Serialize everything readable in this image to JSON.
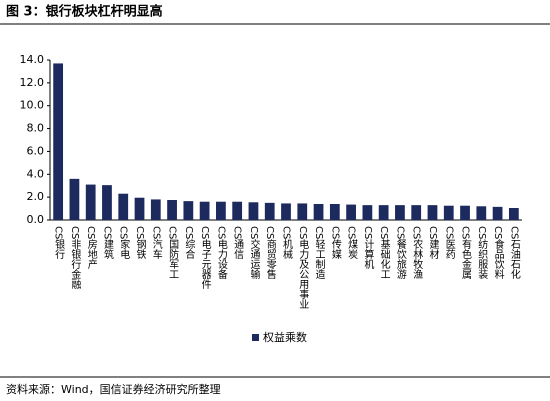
{
  "chart_data": {
    "type": "bar",
    "title": "图 3：银行板块杠杆明显高",
    "source": "资料来源：Wind，国信证券经济研究所整理",
    "categories": [
      "CS银行",
      "CS非银行金融",
      "CS房地产",
      "CS建筑",
      "CS家电",
      "CS钢铁",
      "CS汽车",
      "CS国防军工",
      "CS综合",
      "CS电子元器件",
      "CS电力设备",
      "CS通信",
      "CS交通运输",
      "CS商贸零售",
      "CS机械",
      "CS电力及公用事业",
      "CS轻工制造",
      "CS传媒",
      "CS煤炭",
      "CS计算机",
      "CS基础化工",
      "CS餐饮旅游",
      "CS农林牧渔",
      "CS建材",
      "CS医药",
      "CS有色金属",
      "CS纺织服装",
      "CS食品饮料",
      "CS石油石化"
    ],
    "series": [
      {
        "name": "权益乘数",
        "color": "#1c2a5e",
        "values": [
          13.7,
          3.6,
          3.1,
          3.05,
          2.3,
          1.95,
          1.8,
          1.75,
          1.65,
          1.6,
          1.6,
          1.6,
          1.55,
          1.5,
          1.45,
          1.45,
          1.4,
          1.4,
          1.35,
          1.3,
          1.3,
          1.3,
          1.3,
          1.3,
          1.25,
          1.25,
          1.2,
          1.15,
          1.05
        ]
      }
    ],
    "ylim": [
      0,
      14
    ],
    "yticks": [
      {
        "value": 0,
        "label": "0.0"
      },
      {
        "value": 2,
        "label": "2.0"
      },
      {
        "value": 4,
        "label": "4.0"
      },
      {
        "value": 6,
        "label": "6.0"
      },
      {
        "value": 8,
        "label": "8.0"
      },
      {
        "value": 10,
        "label": "10.0"
      },
      {
        "value": 12,
        "label": "12.0"
      },
      {
        "value": 14,
        "label": "14.0"
      }
    ],
    "grid": false
  }
}
